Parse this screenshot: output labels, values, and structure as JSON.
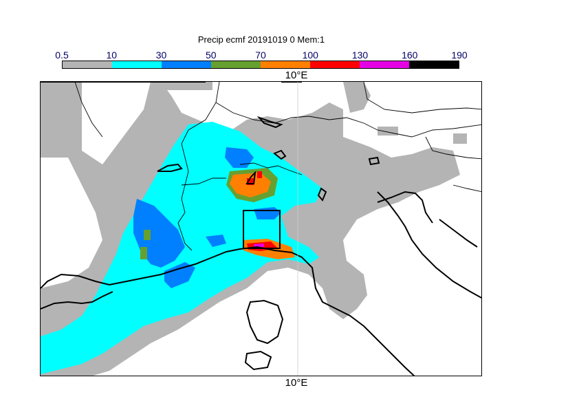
{
  "title": "Precip ecmf 20191019 0 Mem:1",
  "colorbar": {
    "ticks": [
      "0.5",
      "10",
      "30",
      "50",
      "70",
      "100",
      "130",
      "160",
      "190"
    ],
    "colors": [
      "#b4b4b4",
      "#00ffff",
      "#0080ff",
      "#66a030",
      "#ff8000",
      "#ff0000",
      "#e600e6",
      "#000000"
    ]
  },
  "longitude_label_top": "10°E",
  "longitude_label_bottom": "10°E"
}
